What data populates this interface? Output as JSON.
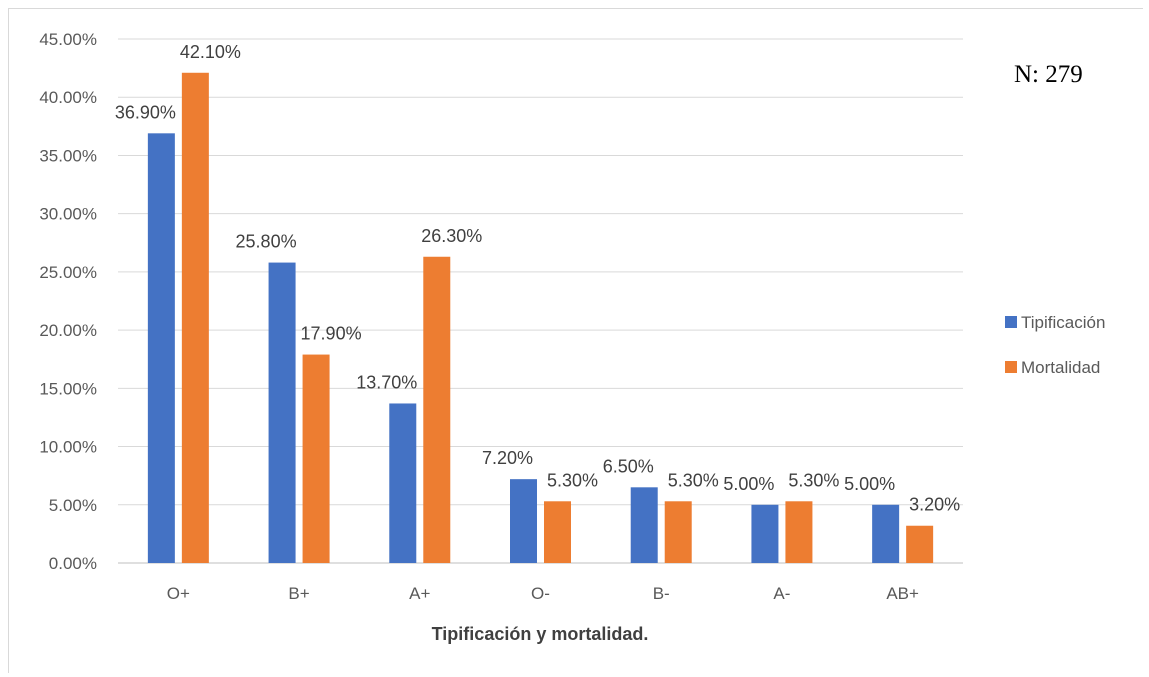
{
  "chart_data": {
    "type": "bar",
    "categories": [
      "O+",
      "B+",
      "A+",
      "O-",
      "B-",
      "A-",
      "AB+"
    ],
    "series": [
      {
        "name": "Tipificación",
        "color": "#4472C4",
        "values": [
          36.9,
          25.8,
          13.7,
          7.2,
          6.5,
          5.0,
          5.0
        ],
        "labels": [
          "36.90%",
          "25.80%",
          "13.70%",
          "7.20%",
          "6.50%",
          "5.00%",
          "5.00%"
        ]
      },
      {
        "name": "Mortalidad",
        "color": "#ED7D31",
        "values": [
          42.1,
          17.9,
          26.3,
          5.3,
          5.3,
          5.3,
          3.2
        ],
        "labels": [
          "42.10%",
          "17.90%",
          "26.30%",
          "5.30%",
          "5.30%",
          "5.30%",
          "3.20%"
        ]
      }
    ],
    "y_ticks": [
      "0.00%",
      "5.00%",
      "10.00%",
      "15.00%",
      "20.00%",
      "25.00%",
      "30.00%",
      "35.00%",
      "40.00%",
      "45.00%"
    ],
    "ylim": [
      0,
      45
    ],
    "xlabel": "Tipificación y mortalidad.",
    "legend_position": "right",
    "annotation": "N: 279",
    "grid": true
  }
}
